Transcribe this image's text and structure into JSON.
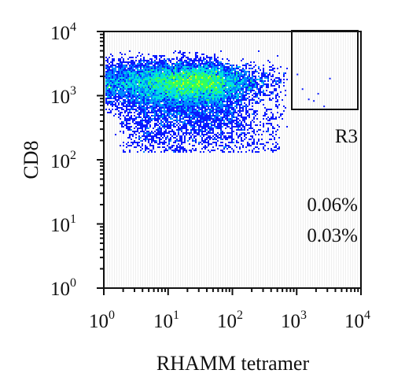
{
  "chart_data": {
    "type": "scatter",
    "subtype": "flow-cytometry-density-plot",
    "xlabel": "RHAMM tetramer",
    "ylabel": "CD8",
    "xscale": "log",
    "yscale": "log",
    "xlim": [
      1,
      10000
    ],
    "ylim": [
      1,
      10000
    ],
    "x_ticks": [
      {
        "base": "10",
        "exp": "0"
      },
      {
        "base": "10",
        "exp": "1"
      },
      {
        "base": "10",
        "exp": "2"
      },
      {
        "base": "10",
        "exp": "3"
      },
      {
        "base": "10",
        "exp": "4"
      }
    ],
    "y_ticks": [
      {
        "base": "10",
        "exp": "0"
      },
      {
        "base": "10",
        "exp": "1"
      },
      {
        "base": "10",
        "exp": "2"
      },
      {
        "base": "10",
        "exp": "3"
      },
      {
        "base": "10",
        "exp": "4"
      }
    ],
    "gate": {
      "label": "R3",
      "x_range": [
        800,
        8500
      ],
      "y_range": [
        600,
        10000
      ]
    },
    "annotations": [
      "0.06%",
      "0.03%"
    ],
    "population": {
      "center_x": 25,
      "center_y": 1600,
      "x_range": [
        1,
        700
      ],
      "y_range": [
        130,
        5000
      ]
    },
    "colormap": [
      "#0a1aff",
      "#0088ff",
      "#00e0e0",
      "#30ff60",
      "#c8ff00",
      "#ffd000",
      "#ff5000",
      "#e00000"
    ]
  }
}
